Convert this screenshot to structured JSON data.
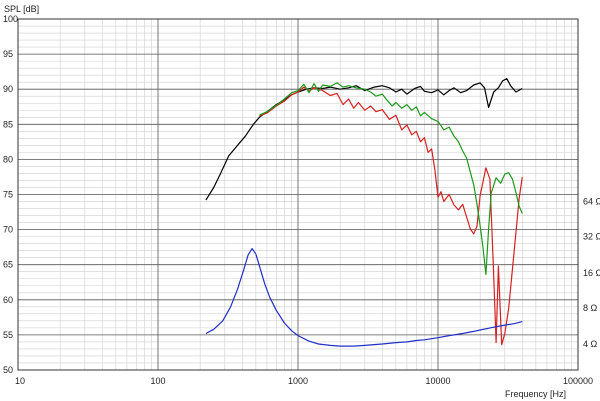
{
  "chart_data": {
    "type": "line",
    "ylabel": "SPL [dB]",
    "xlabel": "Frequency [Hz]",
    "x_scale": "log",
    "xlim": [
      10,
      100000
    ],
    "ylim": [
      50,
      100
    ],
    "x_ticks": [
      {
        "value": 10,
        "label": "10"
      },
      {
        "value": 100,
        "label": "100"
      },
      {
        "value": 1000,
        "label": "1000"
      },
      {
        "value": 10000,
        "label": "10000"
      },
      {
        "value": 100000,
        "label": "100000"
      }
    ],
    "y_ticks": [
      50,
      55,
      60,
      65,
      70,
      75,
      80,
      85,
      90,
      95,
      100
    ],
    "y2_ticks": [
      {
        "label": "64 Ω",
        "spl": 74
      },
      {
        "label": "32 Ω",
        "spl": 69
      },
      {
        "label": "16 Ω",
        "spl": 63.8
      },
      {
        "label": "8 Ω",
        "spl": 58.8
      },
      {
        "label": "4 Ω",
        "spl": 53.7
      }
    ],
    "grid": true,
    "series": [
      {
        "color": "#000000",
        "points": [
          [
            220,
            74.2
          ],
          [
            250,
            76
          ],
          [
            280,
            78
          ],
          [
            320,
            80.5
          ],
          [
            370,
            82
          ],
          [
            420,
            83.3
          ],
          [
            480,
            85
          ],
          [
            530,
            86
          ],
          [
            600,
            86.8
          ],
          [
            700,
            87.8
          ],
          [
            800,
            88.5
          ],
          [
            900,
            89.2
          ],
          [
            1000,
            89.6
          ],
          [
            1150,
            90
          ],
          [
            1300,
            90.2
          ],
          [
            1500,
            90.1
          ],
          [
            1700,
            90.3
          ],
          [
            2000,
            90
          ],
          [
            2300,
            90.2
          ],
          [
            2600,
            90.5
          ],
          [
            3000,
            89.8
          ],
          [
            3500,
            90.3
          ],
          [
            4000,
            90.5
          ],
          [
            4500,
            90.2
          ],
          [
            5000,
            89.6
          ],
          [
            5500,
            90
          ],
          [
            6000,
            89.3
          ],
          [
            6800,
            90.1
          ],
          [
            7500,
            90.4
          ],
          [
            8000,
            89.7
          ],
          [
            9000,
            89.5
          ],
          [
            10000,
            89.9
          ],
          [
            11000,
            89.2
          ],
          [
            12000,
            89.8
          ],
          [
            13000,
            90.2
          ],
          [
            14500,
            89.5
          ],
          [
            16000,
            89.8
          ],
          [
            18000,
            90.6
          ],
          [
            20000,
            90.9
          ],
          [
            21500,
            90.2
          ],
          [
            23000,
            87.4
          ],
          [
            25000,
            89.6
          ],
          [
            27000,
            90.2
          ],
          [
            29000,
            91.2
          ],
          [
            31000,
            91.5
          ],
          [
            33000,
            90.5
          ],
          [
            36000,
            89.6
          ],
          [
            40000,
            90.1
          ]
        ]
      },
      {
        "color": "#d62020",
        "points": [
          [
            530,
            86.2
          ],
          [
            600,
            86.6
          ],
          [
            700,
            87.6
          ],
          [
            800,
            88.3
          ],
          [
            900,
            89.2
          ],
          [
            1000,
            89.6
          ],
          [
            1100,
            90.3
          ],
          [
            1200,
            89.7
          ],
          [
            1300,
            90.2
          ],
          [
            1500,
            89.8
          ],
          [
            1700,
            89.1
          ],
          [
            1900,
            89.4
          ],
          [
            2100,
            87.8
          ],
          [
            2300,
            88.6
          ],
          [
            2500,
            87.3
          ],
          [
            2700,
            88.1
          ],
          [
            3000,
            87
          ],
          [
            3300,
            87.6
          ],
          [
            3600,
            86.8
          ],
          [
            4000,
            87.1
          ],
          [
            4500,
            85.7
          ],
          [
            5000,
            86.3
          ],
          [
            5500,
            84.2
          ],
          [
            6000,
            84.9
          ],
          [
            6500,
            83.5
          ],
          [
            7000,
            84
          ],
          [
            7500,
            82.5
          ],
          [
            8000,
            83.1
          ],
          [
            8500,
            81
          ],
          [
            9000,
            81.5
          ],
          [
            9500,
            78.5
          ],
          [
            10000,
            74.6
          ],
          [
            10500,
            75.4
          ],
          [
            11000,
            74
          ],
          [
            12000,
            75
          ],
          [
            13000,
            73.5
          ],
          [
            14000,
            72.8
          ],
          [
            15000,
            73.6
          ],
          [
            16000,
            71.8
          ],
          [
            17000,
            70.1
          ],
          [
            18000,
            69.4
          ],
          [
            19000,
            70.5
          ],
          [
            20000,
            74.8
          ],
          [
            22000,
            78.8
          ],
          [
            23500,
            77.2
          ],
          [
            25000,
            63.5
          ],
          [
            26000,
            53.9
          ],
          [
            27000,
            64.8
          ],
          [
            28500,
            53.6
          ],
          [
            30000,
            55.2
          ],
          [
            32000,
            58.8
          ],
          [
            35000,
            67
          ],
          [
            38000,
            74.5
          ],
          [
            40000,
            77.5
          ]
        ]
      },
      {
        "color": "#1a9a1a",
        "points": [
          [
            530,
            86.3
          ],
          [
            600,
            86.8
          ],
          [
            700,
            87.7
          ],
          [
            800,
            88.6
          ],
          [
            900,
            89.5
          ],
          [
            1000,
            89.8
          ],
          [
            1100,
            90.7
          ],
          [
            1200,
            89.5
          ],
          [
            1300,
            90.8
          ],
          [
            1400,
            89.7
          ],
          [
            1500,
            90.6
          ],
          [
            1700,
            90.4
          ],
          [
            1900,
            90.9
          ],
          [
            2100,
            90.3
          ],
          [
            2300,
            90.5
          ],
          [
            2600,
            90.2
          ],
          [
            3000,
            90
          ],
          [
            3300,
            89.6
          ],
          [
            3600,
            89
          ],
          [
            4000,
            89.3
          ],
          [
            4300,
            88.5
          ],
          [
            4700,
            87.6
          ],
          [
            5000,
            88.1
          ],
          [
            5500,
            87.3
          ],
          [
            6000,
            87.8
          ],
          [
            6500,
            87
          ],
          [
            7000,
            87.5
          ],
          [
            7500,
            86.2
          ],
          [
            8000,
            86.7
          ],
          [
            9000,
            85.8
          ],
          [
            10000,
            85.4
          ],
          [
            10500,
            84.8
          ],
          [
            11000,
            84.2
          ],
          [
            12000,
            84.6
          ],
          [
            13000,
            83.3
          ],
          [
            14000,
            82.5
          ],
          [
            15000,
            81.2
          ],
          [
            16000,
            80.2
          ],
          [
            17000,
            78.2
          ],
          [
            18000,
            76.4
          ],
          [
            19000,
            73.6
          ],
          [
            20000,
            70.6
          ],
          [
            21000,
            67.3
          ],
          [
            22000,
            63.6
          ],
          [
            23000,
            70.1
          ],
          [
            24000,
            75.2
          ],
          [
            26000,
            77.4
          ],
          [
            28000,
            76.6
          ],
          [
            30000,
            77.9
          ],
          [
            32000,
            78.1
          ],
          [
            34000,
            77.2
          ],
          [
            36000,
            75.3
          ],
          [
            38000,
            73.3
          ],
          [
            40000,
            72.3
          ]
        ]
      },
      {
        "color": "#1f2fc8",
        "points": [
          [
            220,
            55.2
          ],
          [
            250,
            55.8
          ],
          [
            290,
            57
          ],
          [
            330,
            59
          ],
          [
            370,
            61.5
          ],
          [
            410,
            64.3
          ],
          [
            440,
            66.4
          ],
          [
            470,
            67.3
          ],
          [
            500,
            66.5
          ],
          [
            540,
            64.3
          ],
          [
            580,
            62.2
          ],
          [
            630,
            60.3
          ],
          [
            700,
            58.5
          ],
          [
            800,
            56.7
          ],
          [
            900,
            55.6
          ],
          [
            1000,
            54.9
          ],
          [
            1200,
            54.1
          ],
          [
            1400,
            53.7
          ],
          [
            1700,
            53.5
          ],
          [
            2000,
            53.4
          ],
          [
            2500,
            53.4
          ],
          [
            3000,
            53.5
          ],
          [
            4000,
            53.7
          ],
          [
            5000,
            53.9
          ],
          [
            6000,
            54
          ],
          [
            7000,
            54.2
          ],
          [
            8000,
            54.3
          ],
          [
            10000,
            54.6
          ],
          [
            12000,
            54.9
          ],
          [
            15000,
            55.2
          ],
          [
            18000,
            55.5
          ],
          [
            20000,
            55.7
          ],
          [
            25000,
            56.1
          ],
          [
            30000,
            56.4
          ],
          [
            35000,
            56.6
          ],
          [
            40000,
            56.9
          ]
        ]
      }
    ]
  }
}
